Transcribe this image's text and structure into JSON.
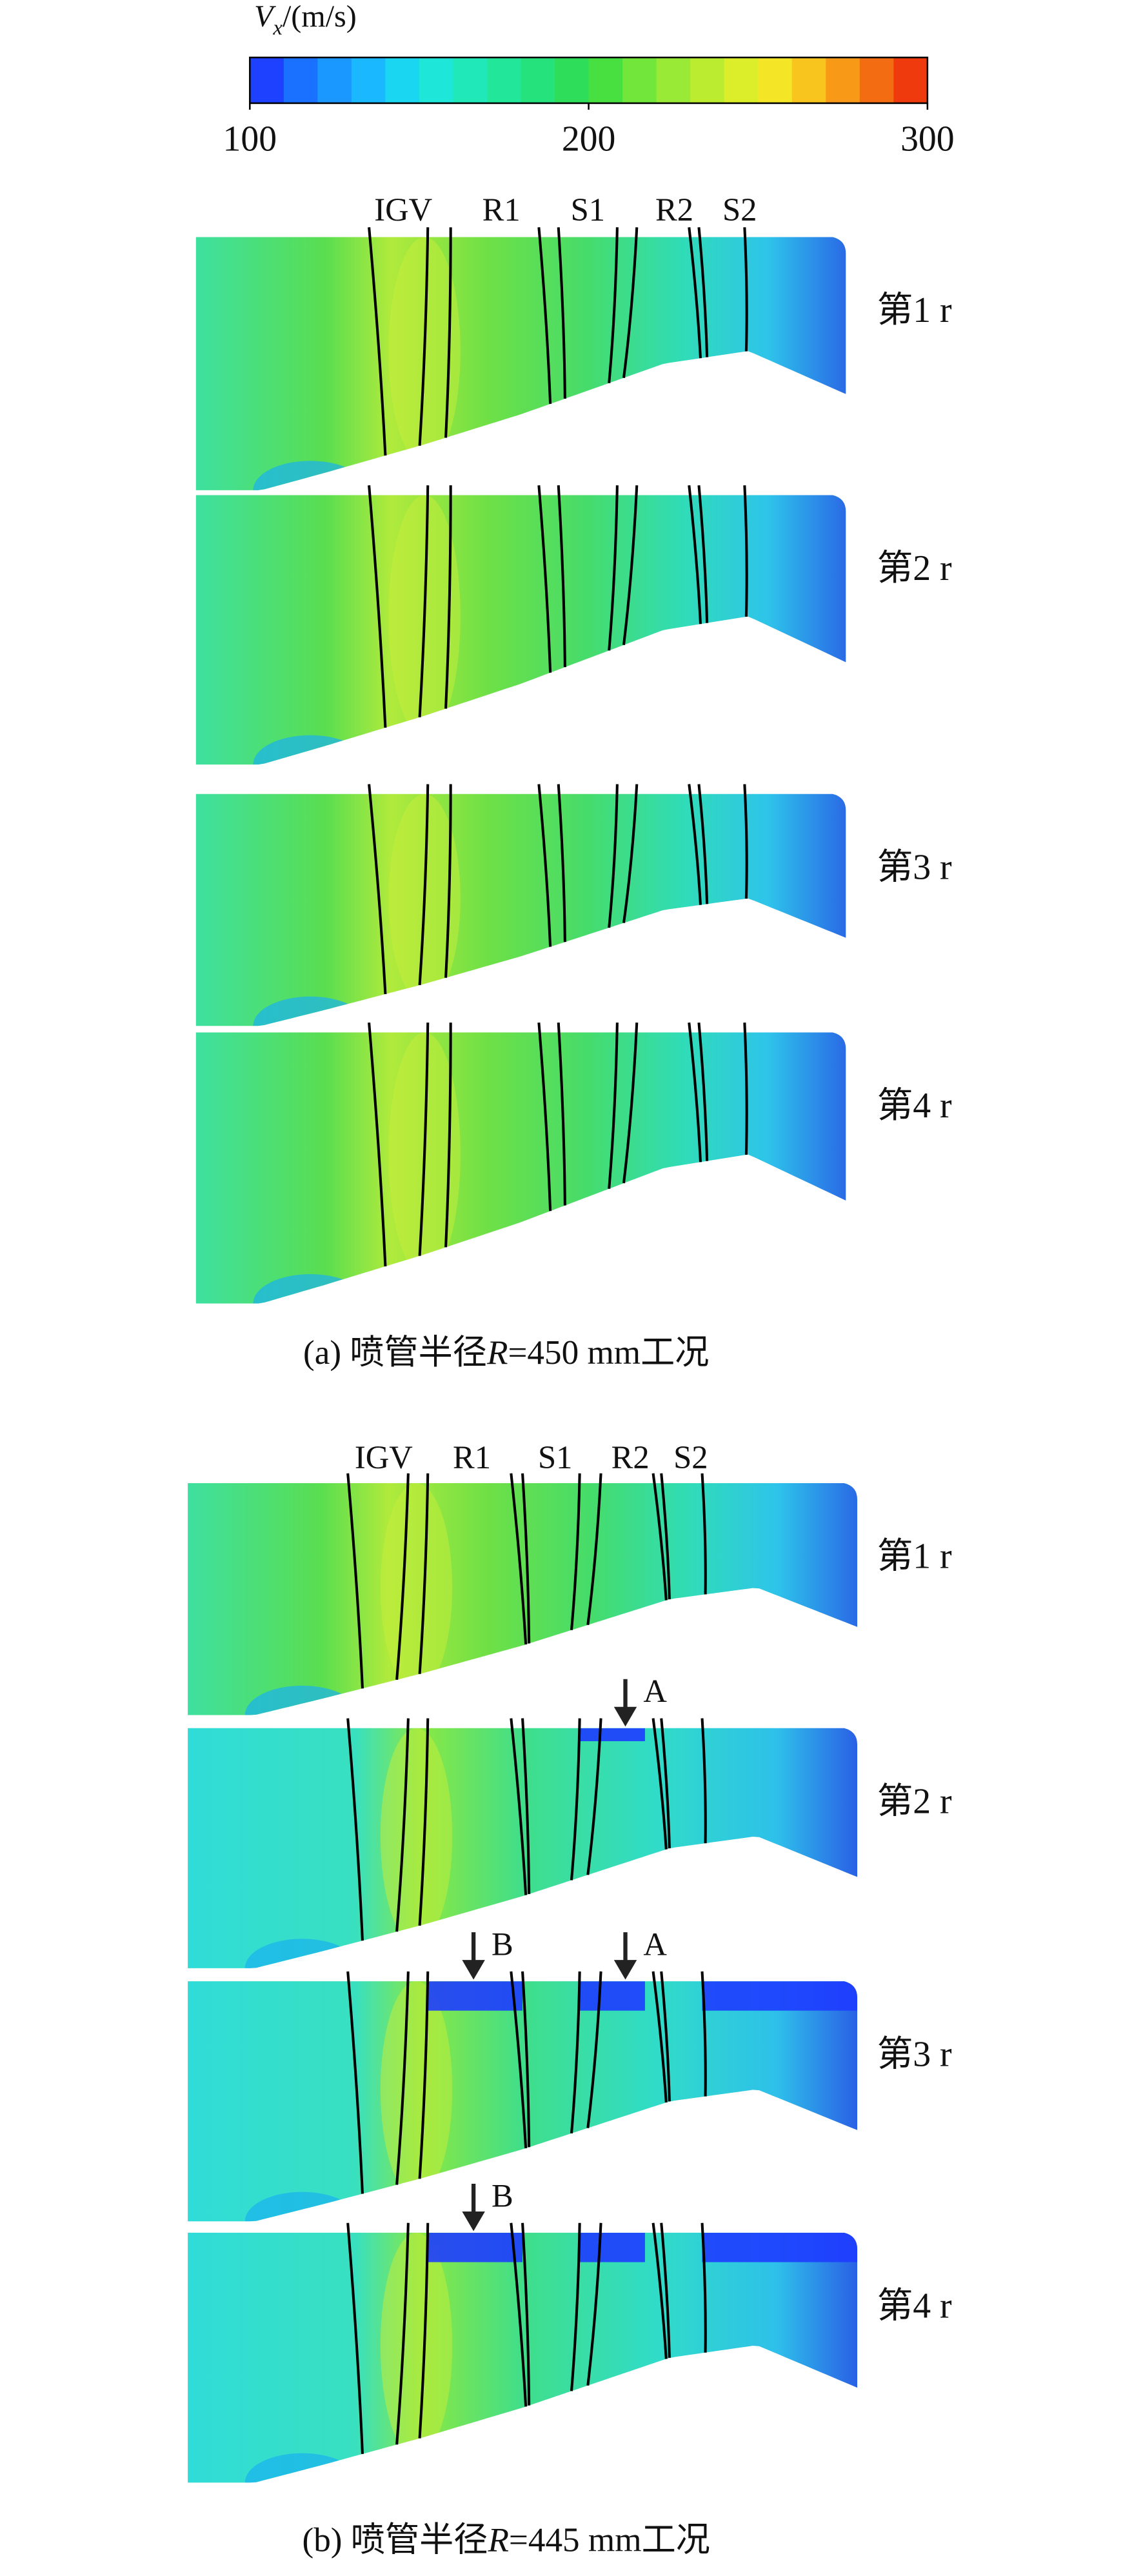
{
  "colorbar": {
    "symbol": "V",
    "subscript": "x",
    "unit": "/(m/s)",
    "lim": [
      100,
      300
    ],
    "ticks": [
      100,
      200,
      300
    ],
    "colors": [
      "#1e40ff",
      "#1a70ff",
      "#1a98ff",
      "#1ab8ff",
      "#1ad6f0",
      "#1ee6d8",
      "#20e8b8",
      "#22e69a",
      "#26e27c",
      "#2ede5a",
      "#48e040",
      "#72e63a",
      "#98ea36",
      "#bcec30",
      "#dcee2a",
      "#f4e626",
      "#f8c41e",
      "#f89a18",
      "#f46c12",
      "#ee3a0c"
    ]
  },
  "panels": [
    {
      "blade_labels": [
        "IGV",
        "R1",
        "S1",
        "R2",
        "S2"
      ],
      "rows": [
        {
          "label": "第1 r",
          "markers": []
        },
        {
          "label": "第2 r",
          "markers": []
        },
        {
          "label": "第3 r",
          "markers": []
        },
        {
          "label": "第4 r",
          "markers": []
        }
      ],
      "caption": {
        "prefix": "(a) 喷管半径",
        "variable": "R",
        "rest": "=450 mm工况"
      }
    },
    {
      "blade_labels": [
        "IGV",
        "R1",
        "S1",
        "R2",
        "S2"
      ],
      "rows": [
        {
          "label": "第1 r",
          "markers": []
        },
        {
          "label": "第2 r",
          "markers": [
            "A"
          ]
        },
        {
          "label": "第3 r",
          "markers": [
            "B",
            "A"
          ]
        },
        {
          "label": "第4 r",
          "markers": [
            "B"
          ]
        }
      ],
      "caption": {
        "prefix": "(b) 喷管半径",
        "variable": "R",
        "rest": "=445 mm工况"
      }
    }
  ]
}
